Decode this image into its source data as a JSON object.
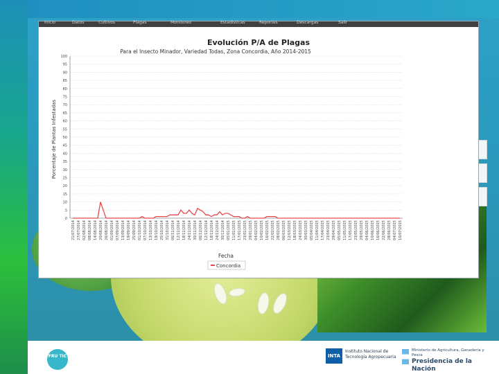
{
  "menu": [
    "Inicio",
    "Datos",
    "Cultivos",
    "Plagas",
    "Monitoreo",
    "Estadisticas",
    "Reportes",
    "Descargas",
    "Salir"
  ],
  "footer": {
    "frutic": "FRU TIC",
    "inta_mark": "INTA",
    "inta_name": "Instituto Nacional de Tecnología Agropecuaria",
    "ministerio": "Ministerio de Agricultura, Ganadería y Pesca",
    "presidencia": "Presidencia de la Nación"
  },
  "chart_data": {
    "type": "line",
    "title": "Evolución P/A de Plagas",
    "subtitle": "Para el Insecto Minador, Variedad Todas, Zona Concordia, Año 2014-2015",
    "xlabel": "Fecha",
    "ylabel": "Porcentaje de Plantas Infestadas",
    "ylim": [
      0,
      100
    ],
    "yticks": [
      0,
      5,
      10,
      15,
      20,
      25,
      30,
      35,
      40,
      45,
      50,
      55,
      60,
      65,
      70,
      75,
      80,
      85,
      90,
      95,
      100
    ],
    "grid": true,
    "legend_position": "bottom",
    "categories": [
      "21/07/2014",
      "24/07/2014",
      "27/07/2014",
      "30/07/2014",
      "02/08/2014",
      "05/08/2014",
      "08/08/2014",
      "11/08/2014",
      "14/08/2014",
      "17/08/2014",
      "20/08/2014",
      "23/08/2014",
      "26/08/2014",
      "29/08/2014",
      "01/09/2014",
      "04/09/2014",
      "07/09/2014",
      "10/09/2014",
      "13/09/2014",
      "16/09/2014",
      "19/09/2014",
      "22/09/2014",
      "25/09/2014",
      "28/09/2014",
      "01/10/2014",
      "04/10/2014",
      "07/10/2014",
      "10/10/2014",
      "13/10/2014",
      "16/10/2014",
      "19/10/2014",
      "22/10/2014",
      "25/10/2014",
      "28/10/2014",
      "31/10/2014",
      "03/11/2014",
      "06/11/2014",
      "09/11/2014",
      "12/11/2014",
      "15/11/2014",
      "18/11/2014",
      "21/11/2014",
      "24/11/2014",
      "27/11/2014",
      "30/11/2014",
      "03/12/2014",
      "06/12/2014",
      "09/12/2014",
      "12/12/2014",
      "15/12/2014",
      "18/12/2014",
      "21/12/2014",
      "24/12/2014",
      "27/12/2014",
      "30/12/2014",
      "02/01/2015",
      "05/01/2015",
      "08/01/2015",
      "11/01/2015",
      "14/01/2015",
      "17/01/2015",
      "20/01/2015",
      "23/01/2015",
      "26/01/2015",
      "29/01/2015",
      "01/02/2015",
      "04/02/2015",
      "07/02/2015",
      "10/02/2015",
      "13/02/2015",
      "16/02/2015",
      "19/02/2015",
      "22/02/2015",
      "25/02/2015",
      "28/02/2015",
      "03/03/2015",
      "06/03/2015",
      "09/03/2015",
      "12/03/2015",
      "15/03/2015",
      "18/03/2015",
      "21/03/2015",
      "24/03/2015",
      "27/03/2015",
      "30/03/2015",
      "02/04/2015",
      "05/04/2015",
      "08/04/2015",
      "11/04/2015",
      "14/04/2015",
      "17/04/2015",
      "20/04/2015",
      "23/04/2015",
      "26/04/2015",
      "29/04/2015",
      "02/05/2015",
      "05/05/2015",
      "08/05/2015",
      "11/05/2015",
      "14/05/2015",
      "17/05/2015",
      "20/05/2015",
      "23/05/2015",
      "26/05/2015",
      "29/05/2015",
      "01/06/2015",
      "04/06/2015",
      "07/06/2015",
      "10/06/2015",
      "13/06/2015",
      "16/06/2015",
      "19/06/2015",
      "22/06/2015",
      "25/06/2015",
      "28/06/2015",
      "01/07/2015",
      "04/07/2015",
      "07/07/2015",
      "10/07/2015"
    ],
    "series": [
      {
        "name": "Concordia",
        "color": "#e8474a",
        "values": [
          0,
          0,
          0,
          0,
          0,
          0,
          0,
          0,
          0,
          0,
          10,
          5,
          0,
          0,
          0,
          0,
          0,
          0,
          0,
          0,
          0,
          0,
          0,
          0,
          0,
          1,
          0,
          0,
          0,
          0,
          1,
          1,
          1,
          1,
          1,
          2,
          2,
          2,
          2,
          5,
          3,
          3,
          5,
          3,
          2,
          6,
          5,
          4,
          2,
          2,
          1,
          2,
          2,
          4,
          2,
          3,
          3,
          2,
          1,
          1,
          1,
          0,
          0,
          1,
          0,
          0,
          0,
          0,
          0,
          0,
          1,
          1,
          1,
          1,
          0,
          0,
          0,
          0,
          0,
          0,
          0,
          0,
          0,
          0,
          0,
          0,
          0,
          0,
          0,
          0,
          0,
          0,
          0,
          0,
          0,
          0,
          0,
          0,
          0,
          0,
          0,
          0,
          0,
          0,
          0,
          0,
          0,
          0,
          0,
          0,
          0,
          0,
          0,
          0,
          0,
          0,
          0,
          0,
          0
        ]
      }
    ]
  }
}
